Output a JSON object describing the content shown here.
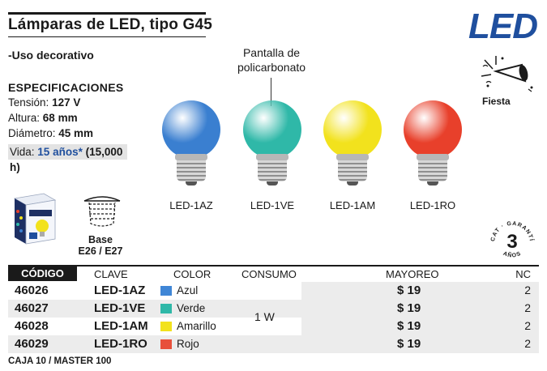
{
  "header": {
    "title": "Lámparas de LED, tipo G45",
    "brand": "LED",
    "subtitle": "-Uso decorativo"
  },
  "specs": {
    "heading": "ESPECIFICACIONES",
    "tension_label": "Tensión:",
    "tension_value": "127 V",
    "altura_label": "Altura:",
    "altura_value": "68 mm",
    "diametro_label": "Diámetro:",
    "diametro_value": "45 mm",
    "vida_label": "Vida:",
    "vida_value": "15 años*",
    "vida_hours": "(15,000 h)"
  },
  "callout": {
    "line1": "Pantalla de",
    "line2": "policarbonato"
  },
  "icon": {
    "name": "party-horn-icon",
    "label": "Fiesta"
  },
  "bulbs": [
    {
      "label": "LED-1AZ",
      "color": "#3a7fd0"
    },
    {
      "label": "LED-1VE",
      "color": "#2fb8a8"
    },
    {
      "label": "LED-1AM",
      "color": "#f2e21d"
    },
    {
      "label": "LED-1RO",
      "color": "#e8402b"
    }
  ],
  "base": {
    "line1": "Base",
    "line2": "E26 / E27"
  },
  "warranty": {
    "top_text": "CCAT · GARANTÍA",
    "number": "3",
    "bottom_text": "AÑOS"
  },
  "table": {
    "headers": [
      "CÓDIGO",
      "CLAVE",
      "COLOR",
      "CONSUMO",
      "MAYOREO",
      "NC"
    ],
    "consumo": "1 W",
    "rows": [
      {
        "code": "46026",
        "key": "LED-1AZ",
        "color_name": "Azul",
        "swatch": "#3f86d6",
        "price": "$ 19",
        "nc": "2"
      },
      {
        "code": "46027",
        "key": "LED-1VE",
        "color_name": "Verde",
        "swatch": "#2fb8a8",
        "price": "$ 19",
        "nc": "2"
      },
      {
        "code": "46028",
        "key": "LED-1AM",
        "color_name": "Amarillo",
        "swatch": "#f2e21d",
        "price": "$ 19",
        "nc": "2"
      },
      {
        "code": "46029",
        "key": "LED-1RO",
        "color_name": "Rojo",
        "swatch": "#e8503b",
        "price": "$ 19",
        "nc": "2"
      }
    ]
  },
  "footer": {
    "caja": "CAJA 10 / MASTER 100"
  }
}
